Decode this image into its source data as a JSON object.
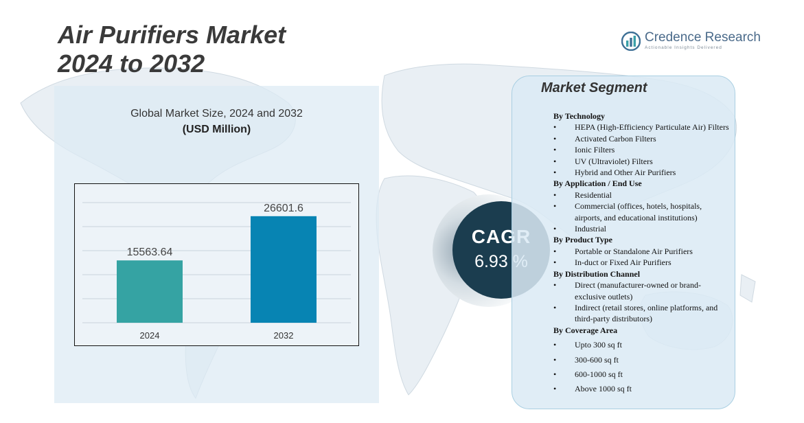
{
  "title_lines": [
    "Air Purifiers Market",
    "2024 to 2032"
  ],
  "logo": {
    "name": "Credence Research",
    "tagline": "Actionable Insights Delivered"
  },
  "chart_data": {
    "type": "bar",
    "title": "Global Market Size, 2024 and 2032",
    "subtitle": "(USD Million)",
    "categories": [
      "2024",
      "2032"
    ],
    "values": [
      15563.64,
      26601.6
    ],
    "value_labels": [
      "15563.64",
      "26601.6"
    ],
    "bar_colors": [
      "#35a3a3",
      "#0784b3"
    ],
    "ylim": [
      0,
      30000
    ],
    "grid": true,
    "legend": "none"
  },
  "cagr": {
    "label": "CAGR",
    "value": "6.93 %"
  },
  "segments": {
    "heading": "Market Segment",
    "groups": [
      {
        "title": "By Technology",
        "items": [
          "HEPA (High-Efficiency Particulate Air) Filters",
          "Activated Carbon Filters",
          "Ionic Filters",
          "UV (Ultraviolet) Filters",
          "Hybrid and Other Air Purifiers"
        ]
      },
      {
        "title": "By Application / End Use",
        "items": [
          "Residential",
          "Commercial (offices, hotels, hospitals, airports, and educational institutions)",
          "Industrial"
        ]
      },
      {
        "title": "By Product Type",
        "items": [
          "Portable or Standalone Air Purifiers",
          "In-duct or Fixed Air Purifiers"
        ]
      },
      {
        "title": "By Distribution Channel",
        "items": [
          "Direct (manufacturer-owned or brand-exclusive outlets)",
          "Indirect (retail stores, online platforms, and third-party distributors)"
        ]
      },
      {
        "title": "By Coverage Area",
        "items": [
          "Upto 300 sq ft",
          "300-600 sq ft",
          "600-1000 sq ft",
          "Above 1000 sq ft"
        ]
      }
    ]
  },
  "colors": {
    "accent": "#1b3d4f",
    "panel": "#dde9f3",
    "map": "#e3ebf1"
  }
}
